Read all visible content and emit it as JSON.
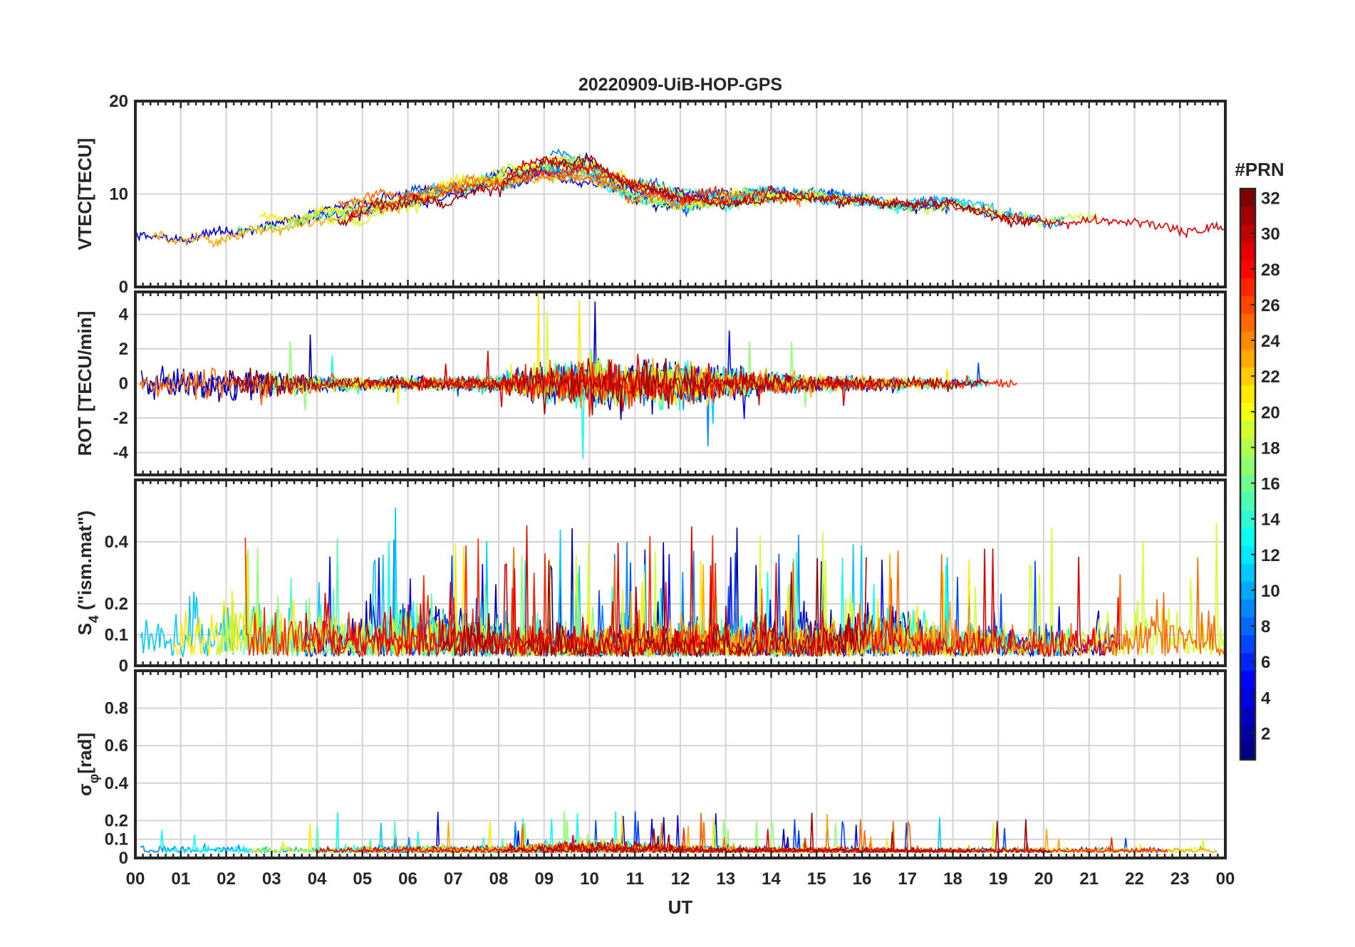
{
  "chart_data": {
    "type": "line",
    "title": "20220909-UiB-HOP-GPS",
    "xlabel": "UT",
    "x_tick_labels": [
      "00",
      "01",
      "02",
      "03",
      "04",
      "05",
      "06",
      "07",
      "08",
      "09",
      "10",
      "11",
      "12",
      "13",
      "14",
      "15",
      "16",
      "17",
      "18",
      "19",
      "20",
      "21",
      "22",
      "23",
      "00"
    ],
    "xlim_hours": [
      0,
      24
    ],
    "colorbar": {
      "label": "#PRN",
      "range": [
        1,
        32
      ],
      "ticks": [
        "2",
        "4",
        "6",
        "8",
        "10",
        "12",
        "14",
        "16",
        "18",
        "20",
        "22",
        "24",
        "26",
        "28",
        "30",
        "32"
      ],
      "colormap": "jet"
    },
    "panels": [
      {
        "id": "vtec",
        "ylabel": "VTEC[TECU]",
        "ylim": [
          0,
          20
        ],
        "yticks": [
          0,
          10,
          20
        ],
        "ytick_labels": [
          "0",
          "10",
          "20"
        ],
        "envelope": {
          "x": [
            0,
            1,
            2,
            3,
            4,
            5,
            6,
            7,
            8,
            9,
            10,
            11,
            12,
            13,
            14,
            15,
            16,
            17,
            18,
            19,
            20,
            21,
            22,
            23,
            24
          ],
          "y_mean": [
            6.5,
            5.5,
            5.5,
            6.5,
            7.5,
            8.5,
            9.5,
            10.5,
            11.5,
            13,
            12.5,
            10.5,
            9.5,
            9.5,
            10,
            9.8,
            9.5,
            9,
            9,
            8,
            7,
            7.5,
            7.5,
            6.5,
            6.5
          ],
          "y_spread": [
            1.8,
            1.8,
            1.8,
            1.8,
            2.0,
            2.2,
            2.2,
            2.5,
            2.5,
            2.5,
            3.0,
            2.8,
            2.5,
            2.0,
            1.5,
            1.3,
            1.3,
            1.3,
            1.3,
            1.4,
            1.5,
            1.6,
            1.6,
            1.5,
            1.5
          ]
        }
      },
      {
        "id": "rot",
        "ylabel": "ROT [TECU/min]",
        "ylim": [
          -5.3,
          5.3
        ],
        "yticks": [
          -4,
          -2,
          0,
          2,
          4
        ],
        "ytick_labels": [
          "-4",
          "-2",
          "0",
          "2",
          "4"
        ],
        "envelope": {
          "x": [
            0,
            1,
            2,
            3,
            4,
            5,
            6,
            7,
            8,
            9,
            10,
            11,
            12,
            13,
            14,
            15,
            16,
            17,
            18,
            19,
            20,
            21,
            22,
            23,
            24
          ],
          "amplitude": [
            0.7,
            0.9,
            1.1,
            0.9,
            0.6,
            0.4,
            0.4,
            0.4,
            0.5,
            1.2,
            1.6,
            1.3,
            1.5,
            1.0,
            0.7,
            0.5,
            0.5,
            0.4,
            0.35,
            0.35,
            0.35,
            0.4,
            0.4,
            0.4,
            0.4
          ]
        }
      },
      {
        "id": "s4",
        "ylabel": "S4 (\"ism.mat\")",
        "ylabel_main": "S",
        "ylabel_sub": "4",
        "ylabel_rest": " (\"ism.mat\")",
        "ylim": [
          0,
          0.6
        ],
        "yticks": [
          0,
          0.1,
          0.2,
          0.4
        ],
        "ytick_labels": [
          "0",
          "0.1",
          "0.2",
          "0.4"
        ],
        "envelope": {
          "x": [
            0,
            1,
            2,
            3,
            4,
            5,
            6,
            7,
            8,
            9,
            10,
            11,
            12,
            13,
            14,
            15,
            16,
            17,
            18,
            19,
            20,
            21,
            22,
            23,
            24
          ],
          "level": [
            0.12,
            0.18,
            0.22,
            0.2,
            0.18,
            0.15,
            0.22,
            0.18,
            0.15,
            0.12,
            0.12,
            0.13,
            0.14,
            0.13,
            0.14,
            0.15,
            0.18,
            0.18,
            0.12,
            0.15,
            0.12,
            0.14,
            0.18,
            0.2,
            0.15
          ]
        }
      },
      {
        "id": "sigma_phi",
        "ylabel": "σφ[rad]",
        "ylabel_main": "σ",
        "ylabel_sub": "φ",
        "ylabel_rest": "[rad]",
        "ylim": [
          0,
          1
        ],
        "yticks": [
          0,
          0.1,
          0.2,
          0.4,
          0.6,
          0.8
        ],
        "ytick_labels": [
          "0",
          "0.1",
          "0.2",
          "0.4",
          "0.6",
          "0.8"
        ],
        "envelope": {
          "x": [
            0,
            1,
            2,
            3,
            4,
            5,
            6,
            7,
            8,
            9,
            10,
            11,
            12,
            13,
            14,
            15,
            16,
            17,
            18,
            19,
            20,
            21,
            22,
            23,
            24
          ],
          "level": [
            0.08,
            0.05,
            0.06,
            0.05,
            0.04,
            0.05,
            0.05,
            0.05,
            0.05,
            0.08,
            0.1,
            0.08,
            0.06,
            0.05,
            0.04,
            0.04,
            0.04,
            0.04,
            0.04,
            0.04,
            0.04,
            0.04,
            0.04,
            0.04,
            0.05
          ]
        }
      }
    ]
  }
}
